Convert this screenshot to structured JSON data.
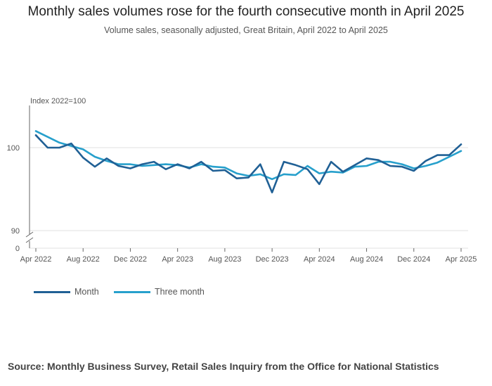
{
  "title": "Monthly sales volumes rose for the fourth consecutive month in April 2025",
  "subtitle": "Volume sales, seasonally adjusted, Great Britain, April 2022 to April 2025",
  "source": "Source: Monthly Business Survey, Retail Sales Inquiry from the Office for National Statistics",
  "chart_data": {
    "type": "line",
    "ylabel": "Index 2022=100",
    "y_ticks": [
      "100",
      "90",
      "0"
    ],
    "ylim": [
      89.5,
      104.5
    ],
    "axis_break": true,
    "x_tick_labels": [
      "Apr 2022",
      "Aug 2022",
      "Dec 2022",
      "Apr 2023",
      "Aug 2023",
      "Dec 2023",
      "Apr 2024",
      "Aug 2024",
      "Dec 2024",
      "Apr 2025"
    ],
    "x": [
      "Apr 2022",
      "May 2022",
      "Jun 2022",
      "Jul 2022",
      "Aug 2022",
      "Sep 2022",
      "Oct 2022",
      "Nov 2022",
      "Dec 2022",
      "Jan 2023",
      "Feb 2023",
      "Mar 2023",
      "Apr 2023",
      "May 2023",
      "Jun 2023",
      "Jul 2023",
      "Aug 2023",
      "Sep 2023",
      "Oct 2023",
      "Nov 2023",
      "Dec 2023",
      "Jan 2024",
      "Feb 2024",
      "Mar 2024",
      "Apr 2024",
      "May 2024",
      "Jun 2024",
      "Jul 2024",
      "Aug 2024",
      "Sep 2024",
      "Oct 2024",
      "Nov 2024",
      "Dec 2024",
      "Jan 2025",
      "Feb 2025",
      "Mar 2025",
      "Apr 2025"
    ],
    "series": [
      {
        "name": "Month",
        "color": "#206095",
        "values": [
          101.5,
          100.0,
          100.0,
          100.5,
          98.8,
          97.7,
          98.7,
          97.8,
          97.5,
          98.0,
          98.3,
          97.4,
          98.0,
          97.5,
          98.3,
          97.2,
          97.3,
          96.3,
          96.4,
          98.0,
          94.6,
          98.3,
          97.9,
          97.4,
          95.6,
          98.3,
          97.1,
          97.9,
          98.7,
          98.5,
          97.8,
          97.7,
          97.2,
          98.4,
          99.1,
          99.1,
          100.4
        ]
      },
      {
        "name": "Three month",
        "color": "#27a0cc",
        "values": [
          102.0,
          101.3,
          100.6,
          100.2,
          99.8,
          98.9,
          98.4,
          98.0,
          98.0,
          97.8,
          97.9,
          98.0,
          97.9,
          97.6,
          98.0,
          97.7,
          97.6,
          96.9,
          96.6,
          96.8,
          96.2,
          96.8,
          96.7,
          97.8,
          96.9,
          97.1,
          97.0,
          97.7,
          97.8,
          98.3,
          98.3,
          98.0,
          97.5,
          97.8,
          98.2,
          98.9,
          99.6
        ]
      }
    ],
    "grid": true,
    "legend_position": "bottom-left"
  }
}
